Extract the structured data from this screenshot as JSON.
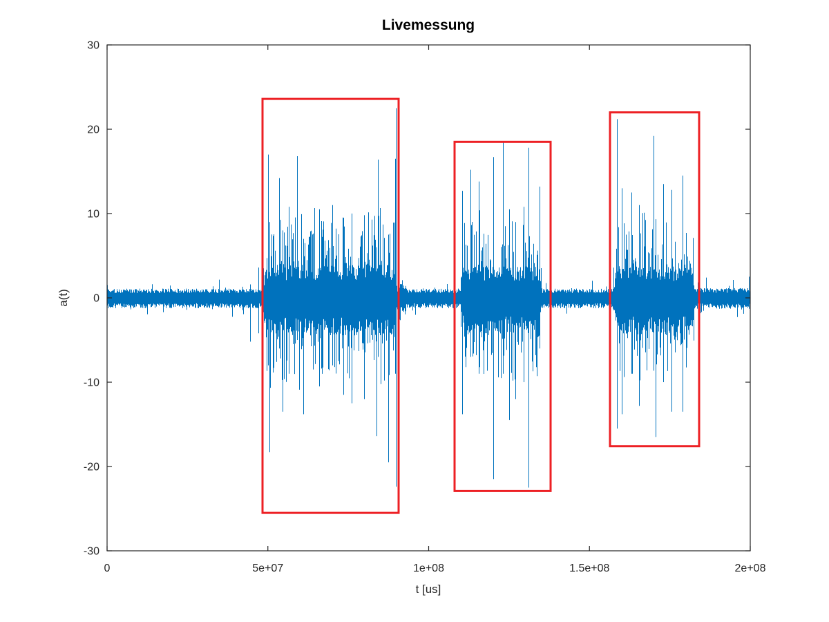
{
  "chart_data": {
    "type": "line",
    "title": "Livemessung",
    "xlabel": "t [us]",
    "ylabel": "a(t)",
    "xlim": [
      0,
      200000000
    ],
    "ylim": [
      -30,
      30
    ],
    "grid": false,
    "box": true,
    "legend": null,
    "line_color": "#0072BD",
    "axis_color": "#262626",
    "background": "#ffffff",
    "x_ticks": [
      {
        "value": 0,
        "label": "0"
      },
      {
        "value": 50000000,
        "label": "5e+07"
      },
      {
        "value": 100000000,
        "label": "1e+08"
      },
      {
        "value": 150000000,
        "label": "1.5e+08"
      },
      {
        "value": 200000000,
        "label": "2e+08"
      }
    ],
    "y_ticks": [
      {
        "value": -30,
        "label": "-30"
      },
      {
        "value": -20,
        "label": "-20"
      },
      {
        "value": -10,
        "label": "-10"
      },
      {
        "value": 0,
        "label": "0"
      },
      {
        "value": 10,
        "label": "10"
      },
      {
        "value": 20,
        "label": "20"
      },
      {
        "value": 30,
        "label": "30"
      }
    ],
    "annotations": {
      "color": "#ed2024",
      "line_width": 3,
      "rects": [
        {
          "type": "rect",
          "x0": 48330000,
          "x1": 90660000,
          "y0": -25.5,
          "y1": 23.6
        },
        {
          "type": "rect",
          "x0": 108050000,
          "x1": 137920000,
          "y0": -22.9,
          "y1": 18.5
        },
        {
          "type": "rect",
          "x0": 156390000,
          "x1": 184100000,
          "y0": -17.6,
          "y1": 22.0
        }
      ]
    },
    "signal": {
      "description": "Acoustic-emission live measurement: background noise ~±1 with three burst events (~±4 dense band, spikes to ±22) marked by red rectangles",
      "segment_fields": [
        "t_start",
        "t_end",
        "band_amplitude",
        "spike_probability",
        "spike_max"
      ],
      "segments": [
        [
          0,
          48200000,
          1.05,
          0.06,
          2.3
        ],
        [
          48200000,
          90500000,
          3.8,
          0.5,
          10.5
        ],
        [
          90500000,
          93000000,
          1.6,
          0.2,
          3.2
        ],
        [
          93000000,
          109800000,
          1.05,
          0.06,
          2.3
        ],
        [
          109800000,
          135300000,
          3.6,
          0.5,
          10.0
        ],
        [
          135300000,
          157300000,
          1.05,
          0.06,
          2.3
        ],
        [
          157300000,
          183000000,
          3.6,
          0.5,
          10.0
        ],
        [
          183000000,
          200000000,
          1.1,
          0.08,
          2.6
        ]
      ],
      "extreme_spike_fields": [
        "t",
        "peak_high",
        "peak_low"
      ],
      "extreme_spikes": [
        [
          44500000,
          1.6,
          -5.2
        ],
        [
          47100000,
          3.6,
          -4.2
        ],
        [
          50000000,
          17.0,
          -8.0
        ],
        [
          50400000,
          9.0,
          -18.3
        ],
        [
          53500000,
          14.2,
          -6.0
        ],
        [
          54500000,
          8.0,
          -13.5
        ],
        [
          56500000,
          10.8,
          -9.0
        ],
        [
          59000000,
          16.8,
          -5.0
        ],
        [
          61000000,
          7.0,
          -13.8
        ],
        [
          66000000,
          10.5,
          -10.5
        ],
        [
          70000000,
          11.0,
          -8.0
        ],
        [
          73500000,
          9.5,
          -11.5
        ],
        [
          76000000,
          10.0,
          -12.5
        ],
        [
          80000000,
          9.8,
          -12.0
        ],
        [
          83800000,
          6.0,
          -16.4
        ],
        [
          84200000,
          16.4,
          -7.0
        ],
        [
          87500000,
          7.5,
          -19.5
        ],
        [
          89500000,
          16.5,
          -9.0
        ],
        [
          89800000,
          22.5,
          -22.4
        ],
        [
          110500000,
          12.7,
          -13.8
        ],
        [
          113000000,
          15.2,
          -7.0
        ],
        [
          115500000,
          13.8,
          -9.0
        ],
        [
          120000000,
          16.7,
          -21.5
        ],
        [
          123100000,
          18.5,
          -9.0
        ],
        [
          125000000,
          10.5,
          -14.5
        ],
        [
          127000000,
          9.0,
          -12.0
        ],
        [
          129500000,
          10.8,
          -10.0
        ],
        [
          131000000,
          17.8,
          -22.5
        ],
        [
          134500000,
          13.2,
          -6.0
        ],
        [
          158500000,
          21.2,
          -15.5
        ],
        [
          160000000,
          13.0,
          -13.8
        ],
        [
          163000000,
          12.5,
          -9.0
        ],
        [
          165500000,
          11.0,
          -12.8
        ],
        [
          170000000,
          19.2,
          -8.0
        ],
        [
          170500000,
          8.0,
          -16.5
        ],
        [
          173000000,
          13.5,
          -10.0
        ],
        [
          175500000,
          12.8,
          -13.5
        ],
        [
          179000000,
          14.5,
          -13.5
        ]
      ]
    }
  }
}
